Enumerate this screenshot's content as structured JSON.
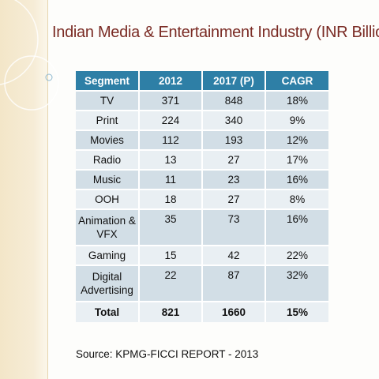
{
  "slide": {
    "title": "Indian Media & Entertainment Industry (INR Billion)",
    "source": "Source: KPMG-FICCI REPORT - 2013"
  },
  "table": {
    "headers": [
      "Segment",
      "2012",
      "2017 (P)",
      "CAGR"
    ],
    "rows": [
      [
        "TV",
        "371",
        "848",
        "18%"
      ],
      [
        "Print",
        "224",
        "340",
        "9%"
      ],
      [
        "Movies",
        "112",
        "193",
        "12%"
      ],
      [
        "Radio",
        "13",
        "27",
        "17%"
      ],
      [
        "Music",
        "11",
        "23",
        "16%"
      ],
      [
        "OOH",
        "18",
        "27",
        "8%"
      ],
      [
        "Animation & VFX",
        "35",
        "73",
        "16%"
      ],
      [
        "Gaming",
        "15",
        "42",
        "22%"
      ],
      [
        "Digital Advertising",
        "22",
        "87",
        "32%"
      ],
      [
        "Total",
        "821",
        "1660",
        "15%"
      ]
    ]
  },
  "colors": {
    "title": "#7a2b24",
    "header_bg": "#2e7fa6",
    "row_dark": "#d2dee6",
    "row_light": "#e9eff3",
    "band": "#f3e6c8"
  }
}
